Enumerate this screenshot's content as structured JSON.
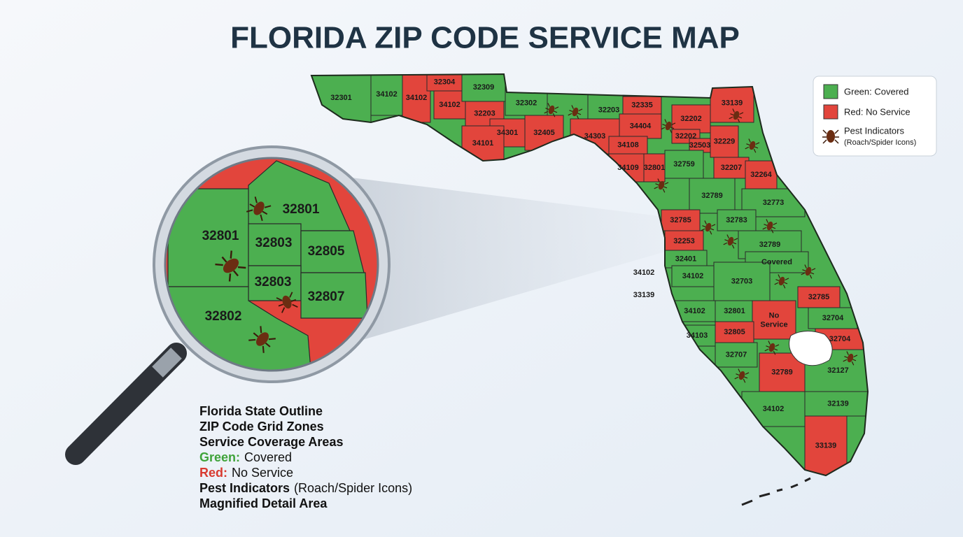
{
  "header": {
    "title": "FLORIDA ZIP CODE SERVICE MAP"
  },
  "legend": {
    "items": [
      {
        "label": "Green: Covered",
        "color": "#4caf50"
      },
      {
        "label": "Red: No Service",
        "color": "#e2453c"
      },
      {
        "label": "Pest Indicators",
        "note": "(Roach/Spider Icons)"
      }
    ]
  },
  "map": {
    "zones": [
      {
        "label": "32301",
        "color": "#4caf50"
      },
      {
        "label": "34102",
        "color": "#4caf50"
      },
      {
        "label": "34102",
        "color": "#e2453c"
      },
      {
        "label": "32304",
        "color": "#e2453c"
      },
      {
        "label": "34102",
        "color": "#e2453c"
      },
      {
        "label": "32309",
        "color": "#4caf50"
      },
      {
        "label": "32203",
        "color": "#e2453c"
      },
      {
        "label": "34301",
        "color": "#e2453c"
      },
      {
        "label": "34101",
        "color": "#e2453c"
      },
      {
        "label": "32302",
        "color": "#4caf50"
      },
      {
        "label": "32405",
        "color": "#e2453c"
      },
      {
        "label": "32203",
        "color": "#4caf50"
      },
      {
        "label": "32335",
        "color": "#e2453c"
      },
      {
        "label": "34303",
        "color": "#e2453c"
      },
      {
        "label": "34404",
        "color": "#e2453c"
      },
      {
        "label": "34108",
        "color": "#e2453c"
      },
      {
        "label": "34109",
        "color": "#e2453c"
      },
      {
        "label": "32801",
        "color": "#e2453c"
      },
      {
        "label": "32202",
        "color": "#e2453c"
      },
      {
        "label": "32202",
        "color": "#e2453c"
      },
      {
        "label": "32503",
        "color": "#e2453c"
      },
      {
        "label": "33139",
        "color": "#e2453c"
      },
      {
        "label": "32229",
        "color": "#e2453c"
      },
      {
        "label": "32759",
        "color": "#4caf50"
      },
      {
        "label": "32207",
        "color": "#e2453c"
      },
      {
        "label": "32264",
        "color": "#e2453c"
      },
      {
        "label": "32789",
        "color": "#4caf50"
      },
      {
        "label": "32773",
        "color": "#4caf50"
      },
      {
        "label": "32785",
        "color": "#e2453c"
      },
      {
        "label": "32783",
        "color": "#4caf50"
      },
      {
        "label": "32253",
        "color": "#e2453c"
      },
      {
        "label": "32789",
        "color": "#4caf50"
      },
      {
        "label": "32401",
        "color": "#4caf50"
      },
      {
        "label": "Covered",
        "color": "#4caf50"
      },
      {
        "label": "34102",
        "color": "#4caf50"
      },
      {
        "label": "32703",
        "color": "#4caf50"
      },
      {
        "label": "32785",
        "color": "#e2453c"
      },
      {
        "label": "34102",
        "color": "#4caf50"
      },
      {
        "label": "32801",
        "color": "#4caf50"
      },
      {
        "label": "No Service",
        "color": "#e2453c"
      },
      {
        "label": "32704",
        "color": "#4caf50"
      },
      {
        "label": "32805",
        "color": "#e2453c"
      },
      {
        "label": "34103",
        "color": "#4caf50"
      },
      {
        "label": "32704",
        "color": "#e2453c"
      },
      {
        "label": "32707",
        "color": "#4caf50"
      },
      {
        "label": "32789",
        "color": "#e2453c"
      },
      {
        "label": "32127",
        "color": "#4caf50"
      },
      {
        "label": "34102",
        "color": "#4caf50"
      },
      {
        "label": "32139",
        "color": "#4caf50"
      },
      {
        "label": "33139",
        "color": "#e2453c"
      }
    ],
    "outside_labels": [
      "34102",
      "33139"
    ]
  },
  "magnifier": {
    "zones": [
      {
        "label": "32801",
        "color": "#4caf50"
      },
      {
        "label": "32801",
        "color": "#4caf50"
      },
      {
        "label": "32803",
        "color": "#4caf50"
      },
      {
        "label": "32805",
        "color": "#4caf50"
      },
      {
        "label": "32803",
        "color": "#4caf50"
      },
      {
        "label": "32807",
        "color": "#4caf50"
      },
      {
        "label": "32802",
        "color": "#4caf50"
      }
    ]
  },
  "notes": [
    {
      "label": "Florida State Outline"
    },
    {
      "label": "ZIP Code Grid Zones"
    },
    {
      "label": "Service Coverage Areas"
    },
    {
      "label": "Green:",
      "text": "Covered",
      "color": "#3fa33a"
    },
    {
      "label": "Red:",
      "text": "No Service",
      "color": "#d83a30"
    },
    {
      "label": "Pest Indicators",
      "text": "(Roach/Spider Icons)"
    },
    {
      "label": "Magnified Detail Area"
    }
  ]
}
